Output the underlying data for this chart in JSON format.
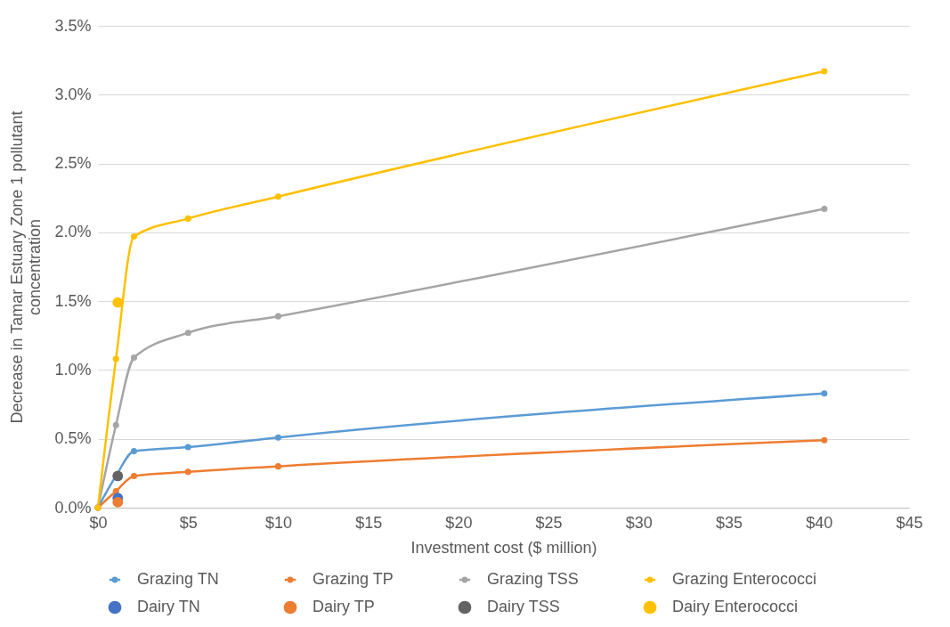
{
  "chart_data": {
    "type": "line",
    "xlabel": "Investment cost ($ million)",
    "ylabel": "Decrease in Tamar Estuary Zone 1 pollutant concentration",
    "xlim": [
      0,
      45
    ],
    "xticks": [
      {
        "value": 0,
        "label": "$0"
      },
      {
        "value": 5,
        "label": "$5"
      },
      {
        "value": 10,
        "label": "$10"
      },
      {
        "value": 15,
        "label": "$15"
      },
      {
        "value": 20,
        "label": "$20"
      },
      {
        "value": 25,
        "label": "$25"
      },
      {
        "value": 30,
        "label": "$30"
      },
      {
        "value": 35,
        "label": "$35"
      },
      {
        "value": 40,
        "label": "$40"
      },
      {
        "value": 45,
        "label": "$45"
      }
    ],
    "ylim": [
      0,
      3.5
    ],
    "yticks": [
      {
        "value": 0,
        "label": "0.0%"
      },
      {
        "value": 0.5,
        "label": "0.5%"
      },
      {
        "value": 1,
        "label": "1.0%"
      },
      {
        "value": 1.5,
        "label": "1.5%"
      },
      {
        "value": 2,
        "label": "2.0%"
      },
      {
        "value": 2.5,
        "label": "2.5%"
      },
      {
        "value": 3,
        "label": "3.0%"
      },
      {
        "value": 3.5,
        "label": "3.5%"
      }
    ],
    "grid": "y",
    "legend": "bottom",
    "marker": "circle",
    "series": [
      {
        "name": "Grazing TN",
        "color": "#5b9bd5",
        "x": [
          0,
          1,
          2,
          5,
          10,
          40.3
        ],
        "values": [
          0,
          0.23,
          0.41,
          0.44,
          0.51,
          0.83
        ]
      },
      {
        "name": "Grazing TP",
        "color": "#ed7d31",
        "x": [
          0,
          1,
          2,
          5,
          10,
          40.3
        ],
        "values": [
          0,
          0.12,
          0.23,
          0.26,
          0.3,
          0.49
        ]
      },
      {
        "name": "Grazing TSS",
        "color": "#a5a5a5",
        "x": [
          0,
          1,
          2,
          5,
          10,
          40.3
        ],
        "values": [
          0,
          0.6,
          1.09,
          1.27,
          1.39,
          2.17
        ]
      },
      {
        "name": "Grazing Enterococci",
        "color": "#ffc000",
        "x": [
          0,
          1,
          2,
          5,
          10,
          40.3
        ],
        "values": [
          0,
          1.08,
          1.97,
          2.1,
          2.26,
          3.17
        ]
      },
      {
        "name": "Dairy TN",
        "color": "#4472c4",
        "type": "scatter",
        "x": [
          1.1
        ],
        "values": [
          0.07
        ]
      },
      {
        "name": "Dairy TP",
        "color": "#ed7d31",
        "type": "scatter",
        "x": [
          1.1
        ],
        "values": [
          0.04
        ]
      },
      {
        "name": "Dairy TSS",
        "color": "#636363",
        "type": "scatter",
        "x": [
          1.1
        ],
        "values": [
          0.23
        ]
      },
      {
        "name": "Dairy Enterococci",
        "color": "#ffc000",
        "type": "scatter",
        "x": [
          1.1
        ],
        "values": [
          1.49
        ]
      }
    ]
  }
}
